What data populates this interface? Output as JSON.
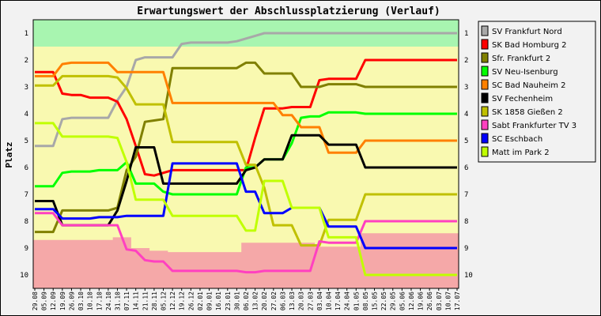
{
  "chart_data": {
    "type": "line",
    "title": "Erwartungswert der Abschlussplatzierung (Verlauf)",
    "ylabel": "Platz",
    "xlabel": "",
    "ylim": [
      1,
      10
    ],
    "y_inverted": true,
    "y_ticks": [
      1,
      2,
      3,
      4,
      5,
      6,
      7,
      8,
      9,
      10
    ],
    "x": [
      "29.08",
      "05.09",
      "12.09",
      "19.09",
      "26.09",
      "03.10",
      "10.10",
      "17.10",
      "24.10",
      "31.10",
      "07.11",
      "14.11",
      "21.11",
      "28.11",
      "05.12",
      "12.12",
      "19.12",
      "26.12",
      "02.01",
      "09.01",
      "16.01",
      "23.01",
      "30.01",
      "06.02",
      "13.02",
      "20.02",
      "27.02",
      "06.03",
      "13.03",
      "20.03",
      "27.03",
      "03.04",
      "10.04",
      "17.04",
      "24.04",
      "01.05",
      "08.05",
      "15.05",
      "22.05",
      "29.05",
      "05.06",
      "12.06",
      "19.06",
      "26.06",
      "03.07",
      "10.07",
      "17.07"
    ],
    "background_zones": [
      {
        "name": "promotion",
        "color": "#a8f5b0"
      },
      {
        "name": "midfield",
        "color": "#f9f9b0"
      },
      {
        "name": "relegation",
        "color": "#f5a8a8"
      }
    ],
    "legend_position": "right",
    "series": [
      {
        "name": "SV Frankfurt Nord",
        "color": "#a8a8a8",
        "values": [
          5.2,
          5.2,
          5.2,
          4.2,
          4.15,
          4.15,
          4.15,
          4.15,
          4.15,
          3.5,
          3.0,
          2.0,
          1.9,
          1.9,
          1.9,
          1.9,
          1.4,
          1.35,
          1.35,
          1.35,
          1.35,
          1.35,
          1.3,
          1.2,
          1.1,
          1.0,
          1.0,
          1.0,
          1.0,
          1.0,
          1.0,
          1.0,
          1.0,
          1.0,
          1.0,
          1.0,
          1.0,
          1.0,
          1.0,
          1.0,
          1.0,
          1.0,
          1.0,
          1.0,
          1.0,
          1.0,
          1.0
        ]
      },
      {
        "name": "SK Bad Homburg 2",
        "color": "#ff0000",
        "values": [
          2.45,
          2.45,
          2.45,
          3.25,
          3.3,
          3.3,
          3.4,
          3.4,
          3.4,
          3.55,
          4.2,
          5.2,
          6.25,
          6.3,
          6.2,
          6.1,
          6.1,
          6.1,
          6.1,
          6.1,
          6.1,
          6.1,
          6.1,
          6.1,
          4.9,
          3.8,
          3.8,
          3.8,
          3.75,
          3.75,
          3.75,
          2.75,
          2.7,
          2.7,
          2.7,
          2.7,
          2.0,
          2.0,
          2.0,
          2.0,
          2.0,
          2.0,
          2.0,
          2.0,
          2.0,
          2.0,
          2.0
        ]
      },
      {
        "name": "Sfr. Frankfurt 2",
        "color": "#808000",
        "values": [
          8.4,
          8.4,
          8.4,
          7.6,
          7.6,
          7.6,
          7.6,
          7.6,
          7.6,
          7.5,
          6.1,
          5.6,
          4.3,
          4.25,
          4.2,
          2.3,
          2.3,
          2.3,
          2.3,
          2.3,
          2.3,
          2.3,
          2.3,
          2.1,
          2.1,
          2.5,
          2.5,
          2.5,
          2.5,
          3.0,
          3.0,
          3.0,
          2.9,
          2.9,
          2.9,
          2.9,
          3.0,
          3.0,
          3.0,
          3.0,
          3.0,
          3.0,
          3.0,
          3.0,
          3.0,
          3.0,
          3.0
        ]
      },
      {
        "name": "SV Neu-Isenburg",
        "color": "#00ff00",
        "values": [
          6.7,
          6.7,
          6.7,
          6.2,
          6.15,
          6.15,
          6.15,
          6.1,
          6.1,
          6.1,
          5.8,
          6.6,
          6.6,
          6.6,
          6.9,
          7.0,
          7.0,
          7.0,
          7.0,
          7.0,
          7.0,
          7.0,
          7.0,
          6.0,
          6.0,
          5.7,
          5.7,
          5.7,
          5.1,
          4.15,
          4.1,
          4.1,
          3.95,
          3.95,
          3.95,
          3.95,
          4.0,
          4.0,
          4.0,
          4.0,
          4.0,
          4.0,
          4.0,
          4.0,
          4.0,
          4.0,
          4.0
        ]
      },
      {
        "name": "SC Bad Nauheim 2",
        "color": "#ff8000",
        "values": [
          2.6,
          2.6,
          2.6,
          2.15,
          2.1,
          2.1,
          2.1,
          2.1,
          2.1,
          2.45,
          2.45,
          2.45,
          2.45,
          2.45,
          2.45,
          3.6,
          3.6,
          3.6,
          3.6,
          3.6,
          3.6,
          3.6,
          3.6,
          3.6,
          3.6,
          3.6,
          3.6,
          4.05,
          4.05,
          4.5,
          4.5,
          4.5,
          5.45,
          5.45,
          5.45,
          5.45,
          5.0,
          5.0,
          5.0,
          5.0,
          5.0,
          5.0,
          5.0,
          5.0,
          5.0,
          5.0,
          5.0
        ]
      },
      {
        "name": "SV Fechenheim",
        "color": "#000000",
        "values": [
          7.25,
          7.25,
          7.25,
          8.15,
          8.15,
          8.15,
          8.15,
          8.15,
          8.15,
          7.6,
          6.5,
          5.25,
          5.25,
          5.25,
          6.6,
          6.6,
          6.6,
          6.6,
          6.6,
          6.6,
          6.6,
          6.6,
          6.6,
          6.1,
          6.0,
          5.7,
          5.7,
          5.7,
          4.8,
          4.8,
          4.8,
          4.8,
          5.15,
          5.15,
          5.15,
          5.15,
          6.0,
          6.0,
          6.0,
          6.0,
          6.0,
          6.0,
          6.0,
          6.0,
          6.0,
          6.0,
          6.0
        ]
      },
      {
        "name": "SK 1858 Gießen 2",
        "color": "#c0c000",
        "values": [
          2.95,
          2.95,
          2.95,
          2.6,
          2.6,
          2.6,
          2.6,
          2.6,
          2.6,
          2.65,
          3.05,
          3.65,
          3.65,
          3.65,
          3.65,
          5.05,
          5.05,
          5.05,
          5.05,
          5.05,
          5.05,
          5.05,
          5.05,
          5.9,
          5.9,
          6.75,
          8.15,
          8.15,
          8.15,
          8.9,
          8.9,
          8.9,
          7.95,
          7.95,
          7.95,
          7.95,
          7.0,
          7.0,
          7.0,
          7.0,
          7.0,
          7.0,
          7.0,
          7.0,
          7.0,
          7.0,
          7.0
        ]
      },
      {
        "name": "Sabt Frankfurter TV 3",
        "color": "#ff40c0",
        "values": [
          7.7,
          7.7,
          7.7,
          8.15,
          8.15,
          8.15,
          8.15,
          8.15,
          8.15,
          8.15,
          9.05,
          9.1,
          9.45,
          9.5,
          9.5,
          9.85,
          9.85,
          9.85,
          9.85,
          9.85,
          9.85,
          9.85,
          9.85,
          9.9,
          9.9,
          9.85,
          9.85,
          9.85,
          9.85,
          9.85,
          9.85,
          8.75,
          8.8,
          8.8,
          8.8,
          8.8,
          8.0,
          8.0,
          8.0,
          8.0,
          8.0,
          8.0,
          8.0,
          8.0,
          8.0,
          8.0,
          8.0
        ]
      },
      {
        "name": "SC Eschbach",
        "color": "#0000ff",
        "values": [
          7.55,
          7.55,
          7.55,
          7.9,
          7.9,
          7.9,
          7.9,
          7.85,
          7.85,
          7.85,
          7.8,
          7.8,
          7.8,
          7.8,
          7.8,
          5.85,
          5.85,
          5.85,
          5.85,
          5.85,
          5.85,
          5.85,
          5.85,
          6.9,
          6.9,
          7.7,
          7.7,
          7.7,
          7.5,
          7.5,
          7.5,
          7.5,
          8.2,
          8.2,
          8.2,
          8.2,
          9.0,
          9.0,
          9.0,
          9.0,
          9.0,
          9.0,
          9.0,
          9.0,
          9.0,
          9.0,
          9.0
        ]
      },
      {
        "name": "Matt im Park 2",
        "color": "#c0ff00",
        "values": [
          4.35,
          4.35,
          4.35,
          4.85,
          4.85,
          4.85,
          4.85,
          4.85,
          4.85,
          4.9,
          5.8,
          7.2,
          7.2,
          7.2,
          7.2,
          7.8,
          7.8,
          7.8,
          7.8,
          7.8,
          7.8,
          7.8,
          7.8,
          8.35,
          8.35,
          6.5,
          6.5,
          6.5,
          7.5,
          7.5,
          7.5,
          7.5,
          8.6,
          8.6,
          8.6,
          8.6,
          10.0,
          10.0,
          10.0,
          10.0,
          10.0,
          10.0,
          10.0,
          10.0,
          10.0,
          10.0,
          10.0
        ]
      }
    ]
  }
}
